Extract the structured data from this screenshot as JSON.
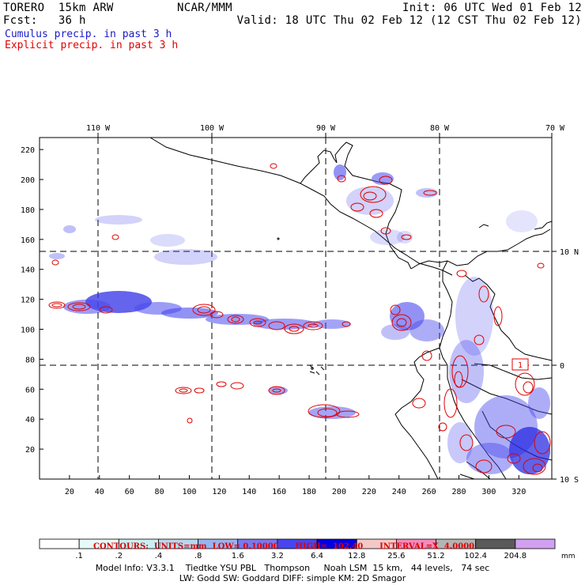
{
  "header": {
    "model": "TORERO  15km ARW",
    "center": "NCAR/MMM",
    "init": "Init: 06 UTC Wed 01 Feb 12",
    "fcst": "Fcst:   36 h",
    "valid": "Valid: 18 UTC Thu 02 Feb 12 (12 CST Thu 02 Feb 12)",
    "cumulus_label": "Cumulus precip. in past 3 h",
    "explicit_label": "Explicit precip. in past 3 h"
  },
  "colors": {
    "cumulus": "#1a1aff",
    "explicit": "#e00000",
    "coast": "#000000",
    "grid": "#000000"
  },
  "map": {
    "lon_labels": [
      "110 W",
      "100 W",
      "90 W",
      "80 W",
      "70 W"
    ],
    "lat_labels": [
      "10 N",
      "0",
      "10 S"
    ],
    "y_ticks": [
      "220",
      "200",
      "180",
      "160",
      "140",
      "120",
      "100",
      "80",
      "60",
      "40",
      "20"
    ],
    "x_ticks": [
      "20",
      "40",
      "60",
      "80",
      "100",
      "120",
      "140",
      "160",
      "180",
      "200",
      "220",
      "240",
      "260",
      "280",
      "300",
      "320"
    ],
    "contour_box_label": "1"
  },
  "contours_info": {
    "text": "CONTOURS:  UNITS=mm  LOW= 0.10000      HIGH=  102.40      INTERVAL=X  4.0000"
  },
  "legend": {
    "unit": "mm",
    "levels": [
      ".1",
      ".2",
      ".4",
      ".8",
      "1.6",
      "3.2",
      "6.4",
      "12.8",
      "25.6",
      "51.2",
      "102.4",
      "204.8"
    ],
    "colors": [
      "#ffffff",
      "#e6fafa",
      "#c8f0f4",
      "#b4d8f0",
      "#96b4f0",
      "#7878f0",
      "#4646f0",
      "#0000e6",
      "#f5c8c8",
      "#f08cbe",
      "#b4b4b4",
      "#5a5a5a",
      "#d2a0f0"
    ]
  },
  "footer": {
    "line1": "Model Info: V3.3.1    Tiedtke YSU PBL   Thompson     Noah LSM  15 km,   44 levels,   74 sec",
    "line2": "LW: Godd SW: Goddard DIFF: simple KM: 2D Smagor"
  }
}
